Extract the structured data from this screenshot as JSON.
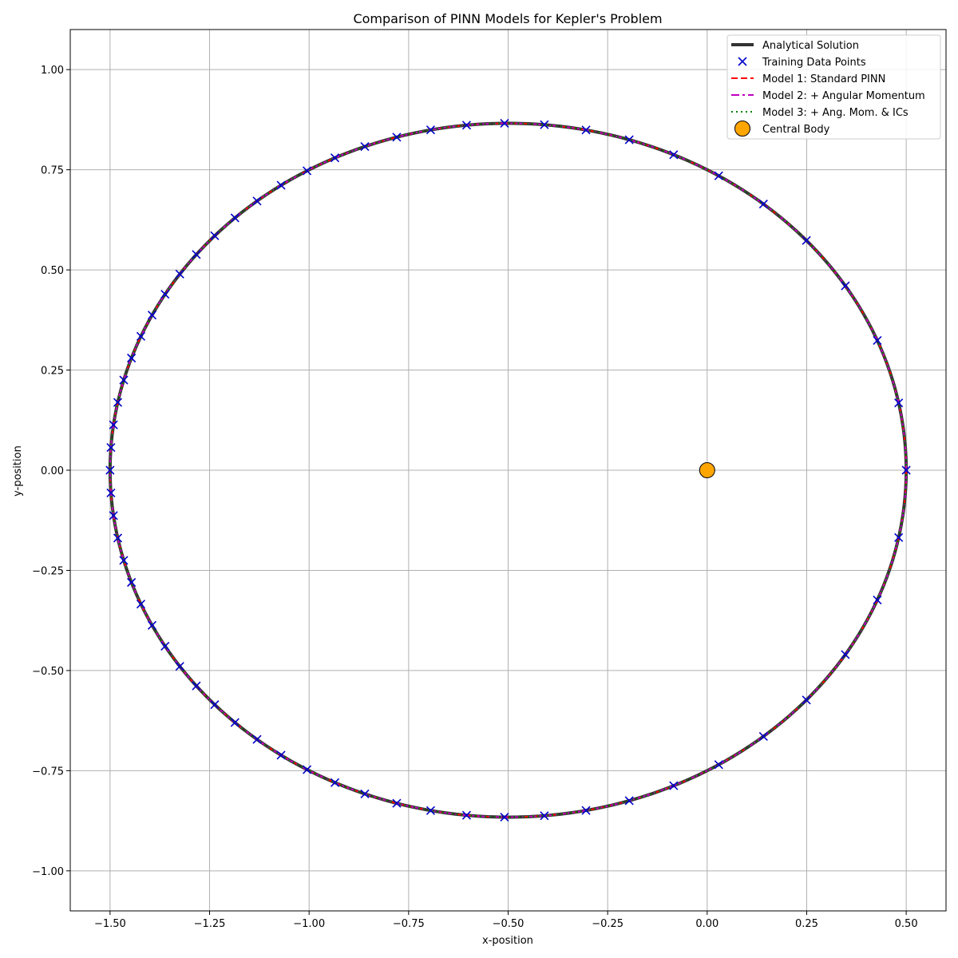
{
  "chart_data": {
    "type": "line",
    "title": "Comparison of PINN Models for Kepler's Problem",
    "xlabel": "x-position",
    "ylabel": "y-position",
    "xlim": [
      -1.6,
      0.6
    ],
    "ylim": [
      -1.1,
      1.1
    ],
    "xticks": [
      -1.5,
      -1.25,
      -1.0,
      -0.75,
      -0.5,
      -0.25,
      0.0,
      0.25,
      0.5
    ],
    "xtick_labels": [
      "−1.50",
      "−1.25",
      "−1.00",
      "−0.75",
      "−0.50",
      "−0.25",
      "0.00",
      "0.25",
      "0.50"
    ],
    "yticks": [
      -1.0,
      -0.75,
      -0.5,
      -0.25,
      0.0,
      0.25,
      0.5,
      0.75,
      1.0
    ],
    "ytick_labels": [
      "−1.00",
      "−0.75",
      "−0.50",
      "−0.25",
      "0.00",
      "0.25",
      "0.50",
      "0.75",
      "1.00"
    ],
    "grid": true,
    "legend_position": "top-right",
    "orbit": {
      "center": [
        -0.5,
        0.0
      ],
      "semi_major_axis": 1.0,
      "semi_minor_axis": 0.866
    },
    "series": [
      {
        "name": "Analytical Solution",
        "style": "solid",
        "color": "#333333",
        "width": 4
      },
      {
        "name": "Training Data Points",
        "style": "markers-x",
        "color": "#0000cc",
        "count": 64
      },
      {
        "name": "Model 1: Standard PINN",
        "style": "dashed",
        "color": "#ff0000",
        "width": 2
      },
      {
        "name": "Model 2: + Angular Momentum",
        "style": "dashdot",
        "color": "#bf00bf",
        "width": 2
      },
      {
        "name": "Model 3: + Ang. Mom. & ICs",
        "style": "dotted",
        "color": "#008000",
        "width": 2
      },
      {
        "name": "Central Body",
        "style": "circle-marker",
        "color": "#ffa500",
        "x": 0.0,
        "y": 0.0
      }
    ]
  }
}
